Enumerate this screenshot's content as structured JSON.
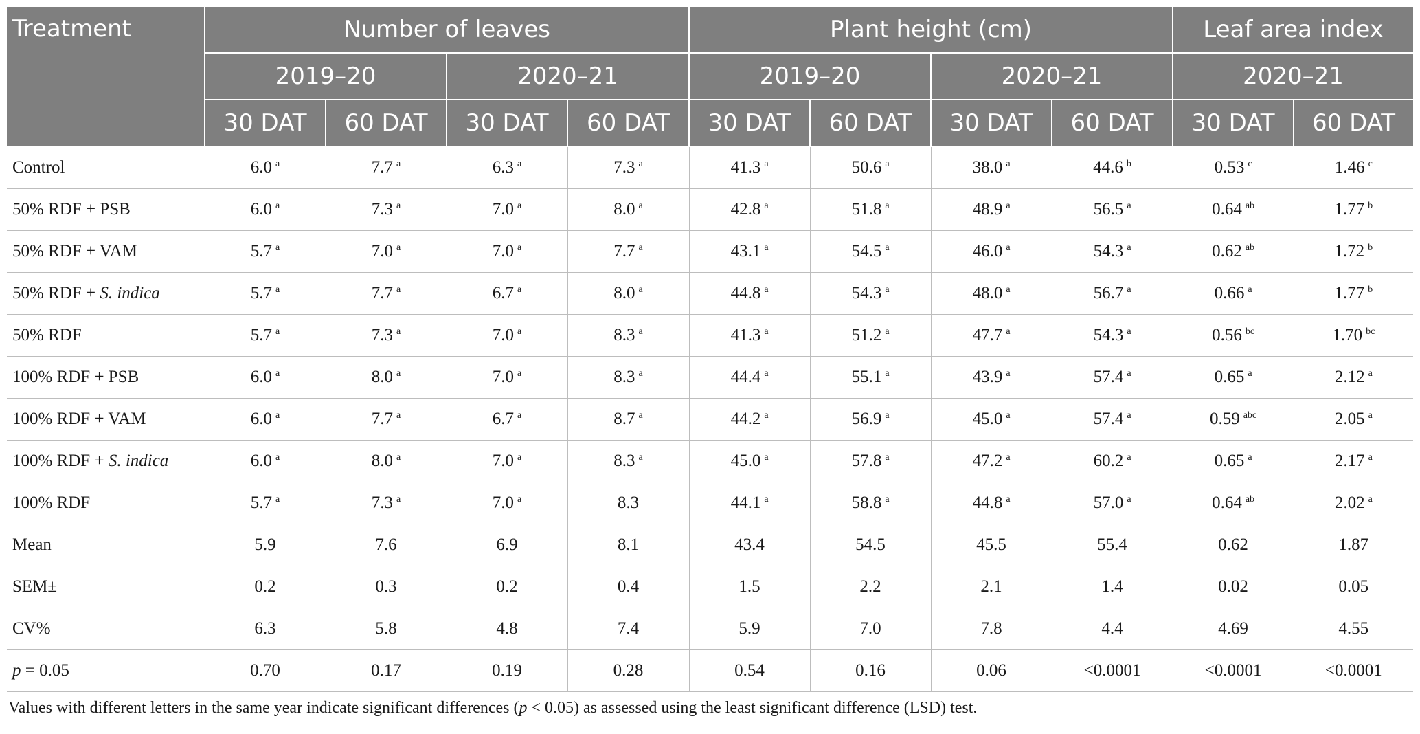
{
  "header": {
    "treatment": "Treatment",
    "groups": [
      "Number of leaves",
      "Plant height (cm)",
      "Leaf area index"
    ],
    "years": [
      "2019–20",
      "2020–21",
      "2019–20",
      "2020–21",
      "2020–21"
    ],
    "dat": [
      "30 DAT",
      "60 DAT",
      "30 DAT",
      "60 DAT",
      "30 DAT",
      "60 DAT",
      "30 DAT",
      "60 DAT",
      "30 DAT",
      "60 DAT"
    ]
  },
  "rows": [
    {
      "name": "Control",
      "name_italic": "",
      "cells": [
        {
          "v": "6.0",
          "s": "a"
        },
        {
          "v": "7.7",
          "s": "a"
        },
        {
          "v": "6.3",
          "s": "a"
        },
        {
          "v": "7.3",
          "s": "a"
        },
        {
          "v": "41.3",
          "s": "a"
        },
        {
          "v": "50.6",
          "s": "a"
        },
        {
          "v": "38.0",
          "s": "a"
        },
        {
          "v": "44.6",
          "s": "b"
        },
        {
          "v": "0.53",
          "s": "c"
        },
        {
          "v": "1.46",
          "s": "c"
        }
      ]
    },
    {
      "name": "50% RDF + PSB",
      "name_italic": "",
      "cells": [
        {
          "v": "6.0",
          "s": "a"
        },
        {
          "v": "7.3",
          "s": "a"
        },
        {
          "v": "7.0",
          "s": "a"
        },
        {
          "v": "8.0",
          "s": "a"
        },
        {
          "v": "42.8",
          "s": "a"
        },
        {
          "v": "51.8",
          "s": "a"
        },
        {
          "v": "48.9",
          "s": "a"
        },
        {
          "v": "56.5",
          "s": "a"
        },
        {
          "v": "0.64",
          "s": "ab"
        },
        {
          "v": "1.77",
          "s": "b"
        }
      ]
    },
    {
      "name": "50% RDF + VAM",
      "name_italic": "",
      "cells": [
        {
          "v": "5.7",
          "s": "a"
        },
        {
          "v": "7.0",
          "s": "a"
        },
        {
          "v": "7.0",
          "s": "a"
        },
        {
          "v": "7.7",
          "s": "a"
        },
        {
          "v": "43.1",
          "s": "a"
        },
        {
          "v": "54.5",
          "s": "a"
        },
        {
          "v": "46.0",
          "s": "a"
        },
        {
          "v": "54.3",
          "s": "a"
        },
        {
          "v": "0.62",
          "s": "ab"
        },
        {
          "v": "1.72",
          "s": "b"
        }
      ]
    },
    {
      "name": "50% RDF + ",
      "name_italic": "S. indica",
      "cells": [
        {
          "v": "5.7",
          "s": "a"
        },
        {
          "v": "7.7",
          "s": "a"
        },
        {
          "v": "6.7",
          "s": "a"
        },
        {
          "v": "8.0",
          "s": "a"
        },
        {
          "v": "44.8",
          "s": "a"
        },
        {
          "v": "54.3",
          "s": "a"
        },
        {
          "v": "48.0",
          "s": "a"
        },
        {
          "v": "56.7",
          "s": "a"
        },
        {
          "v": "0.66",
          "s": "a"
        },
        {
          "v": "1.77",
          "s": "b"
        }
      ]
    },
    {
      "name": "50% RDF",
      "name_italic": "",
      "cells": [
        {
          "v": "5.7",
          "s": "a"
        },
        {
          "v": "7.3",
          "s": "a"
        },
        {
          "v": "7.0",
          "s": "a"
        },
        {
          "v": "8.3",
          "s": "a"
        },
        {
          "v": "41.3",
          "s": "a"
        },
        {
          "v": "51.2",
          "s": "a"
        },
        {
          "v": "47.7",
          "s": "a"
        },
        {
          "v": "54.3",
          "s": "a"
        },
        {
          "v": "0.56",
          "s": "bc"
        },
        {
          "v": "1.70",
          "s": "bc"
        }
      ]
    },
    {
      "name": "100% RDF + PSB",
      "name_italic": "",
      "cells": [
        {
          "v": "6.0",
          "s": "a"
        },
        {
          "v": "8.0",
          "s": "a"
        },
        {
          "v": "7.0",
          "s": "a"
        },
        {
          "v": "8.3",
          "s": "a"
        },
        {
          "v": "44.4",
          "s": "a"
        },
        {
          "v": "55.1",
          "s": "a"
        },
        {
          "v": "43.9",
          "s": "a"
        },
        {
          "v": "57.4",
          "s": "a"
        },
        {
          "v": "0.65",
          "s": "a"
        },
        {
          "v": "2.12",
          "s": "a"
        }
      ]
    },
    {
      "name": "100% RDF + VAM",
      "name_italic": "",
      "cells": [
        {
          "v": "6.0",
          "s": "a"
        },
        {
          "v": "7.7",
          "s": "a"
        },
        {
          "v": "6.7",
          "s": "a"
        },
        {
          "v": "8.7",
          "s": "a"
        },
        {
          "v": "44.2",
          "s": "a"
        },
        {
          "v": "56.9",
          "s": "a"
        },
        {
          "v": "45.0",
          "s": "a"
        },
        {
          "v": "57.4",
          "s": "a"
        },
        {
          "v": "0.59",
          "s": "abc"
        },
        {
          "v": "2.05",
          "s": "a"
        }
      ]
    },
    {
      "name": "100% RDF + ",
      "name_italic": "S. indica",
      "cells": [
        {
          "v": "6.0",
          "s": "a"
        },
        {
          "v": "8.0",
          "s": "a"
        },
        {
          "v": "7.0",
          "s": "a"
        },
        {
          "v": "8.3",
          "s": "a"
        },
        {
          "v": "45.0",
          "s": "a"
        },
        {
          "v": "57.8",
          "s": "a"
        },
        {
          "v": "47.2",
          "s": "a"
        },
        {
          "v": "60.2",
          "s": "a"
        },
        {
          "v": "0.65",
          "s": "a"
        },
        {
          "v": "2.17",
          "s": "a"
        }
      ]
    },
    {
      "name": "100% RDF",
      "name_italic": "",
      "cells": [
        {
          "v": "5.7",
          "s": "a"
        },
        {
          "v": "7.3",
          "s": "a"
        },
        {
          "v": "7.0",
          "s": "a"
        },
        {
          "v": "8.3",
          "s": ""
        },
        {
          "v": "44.1",
          "s": "a"
        },
        {
          "v": "58.8",
          "s": "a"
        },
        {
          "v": "44.8",
          "s": "a"
        },
        {
          "v": "57.0",
          "s": "a"
        },
        {
          "v": "0.64",
          "s": "ab"
        },
        {
          "v": "2.02",
          "s": "a"
        }
      ]
    },
    {
      "name": "Mean",
      "name_italic": "",
      "cells": [
        {
          "v": "5.9",
          "s": ""
        },
        {
          "v": "7.6",
          "s": ""
        },
        {
          "v": "6.9",
          "s": ""
        },
        {
          "v": "8.1",
          "s": ""
        },
        {
          "v": "43.4",
          "s": ""
        },
        {
          "v": "54.5",
          "s": ""
        },
        {
          "v": "45.5",
          "s": ""
        },
        {
          "v": "55.4",
          "s": ""
        },
        {
          "v": "0.62",
          "s": ""
        },
        {
          "v": "1.87",
          "s": ""
        }
      ]
    },
    {
      "name": "SEM±",
      "name_italic": "",
      "cells": [
        {
          "v": "0.2",
          "s": ""
        },
        {
          "v": "0.3",
          "s": ""
        },
        {
          "v": "0.2",
          "s": ""
        },
        {
          "v": "0.4",
          "s": ""
        },
        {
          "v": "1.5",
          "s": ""
        },
        {
          "v": "2.2",
          "s": ""
        },
        {
          "v": "2.1",
          "s": ""
        },
        {
          "v": "1.4",
          "s": ""
        },
        {
          "v": "0.02",
          "s": ""
        },
        {
          "v": "0.05",
          "s": ""
        }
      ]
    },
    {
      "name": "CV%",
      "name_italic": "",
      "cells": [
        {
          "v": "6.3",
          "s": ""
        },
        {
          "v": "5.8",
          "s": ""
        },
        {
          "v": "4.8",
          "s": ""
        },
        {
          "v": "7.4",
          "s": ""
        },
        {
          "v": "5.9",
          "s": ""
        },
        {
          "v": "7.0",
          "s": ""
        },
        {
          "v": "7.8",
          "s": ""
        },
        {
          "v": "4.4",
          "s": ""
        },
        {
          "v": "4.69",
          "s": ""
        },
        {
          "v": "4.55",
          "s": ""
        }
      ]
    },
    {
      "name": " = 0.05",
      "name_italic_prefix": "p",
      "name_italic": "",
      "cells": [
        {
          "v": "0.70",
          "s": ""
        },
        {
          "v": "0.17",
          "s": ""
        },
        {
          "v": "0.19",
          "s": ""
        },
        {
          "v": "0.28",
          "s": ""
        },
        {
          "v": "0.54",
          "s": ""
        },
        {
          "v": "0.16",
          "s": ""
        },
        {
          "v": "0.06",
          "s": ""
        },
        {
          "v": "<0.0001",
          "s": ""
        },
        {
          "v": "<0.0001",
          "s": ""
        },
        {
          "v": "<0.0001",
          "s": ""
        }
      ]
    }
  ],
  "note": {
    "before": "Values with different letters in the same year indicate significant differences (",
    "italic": "p",
    "after": " < 0.05) as assessed using the least significant difference (LSD) test."
  }
}
